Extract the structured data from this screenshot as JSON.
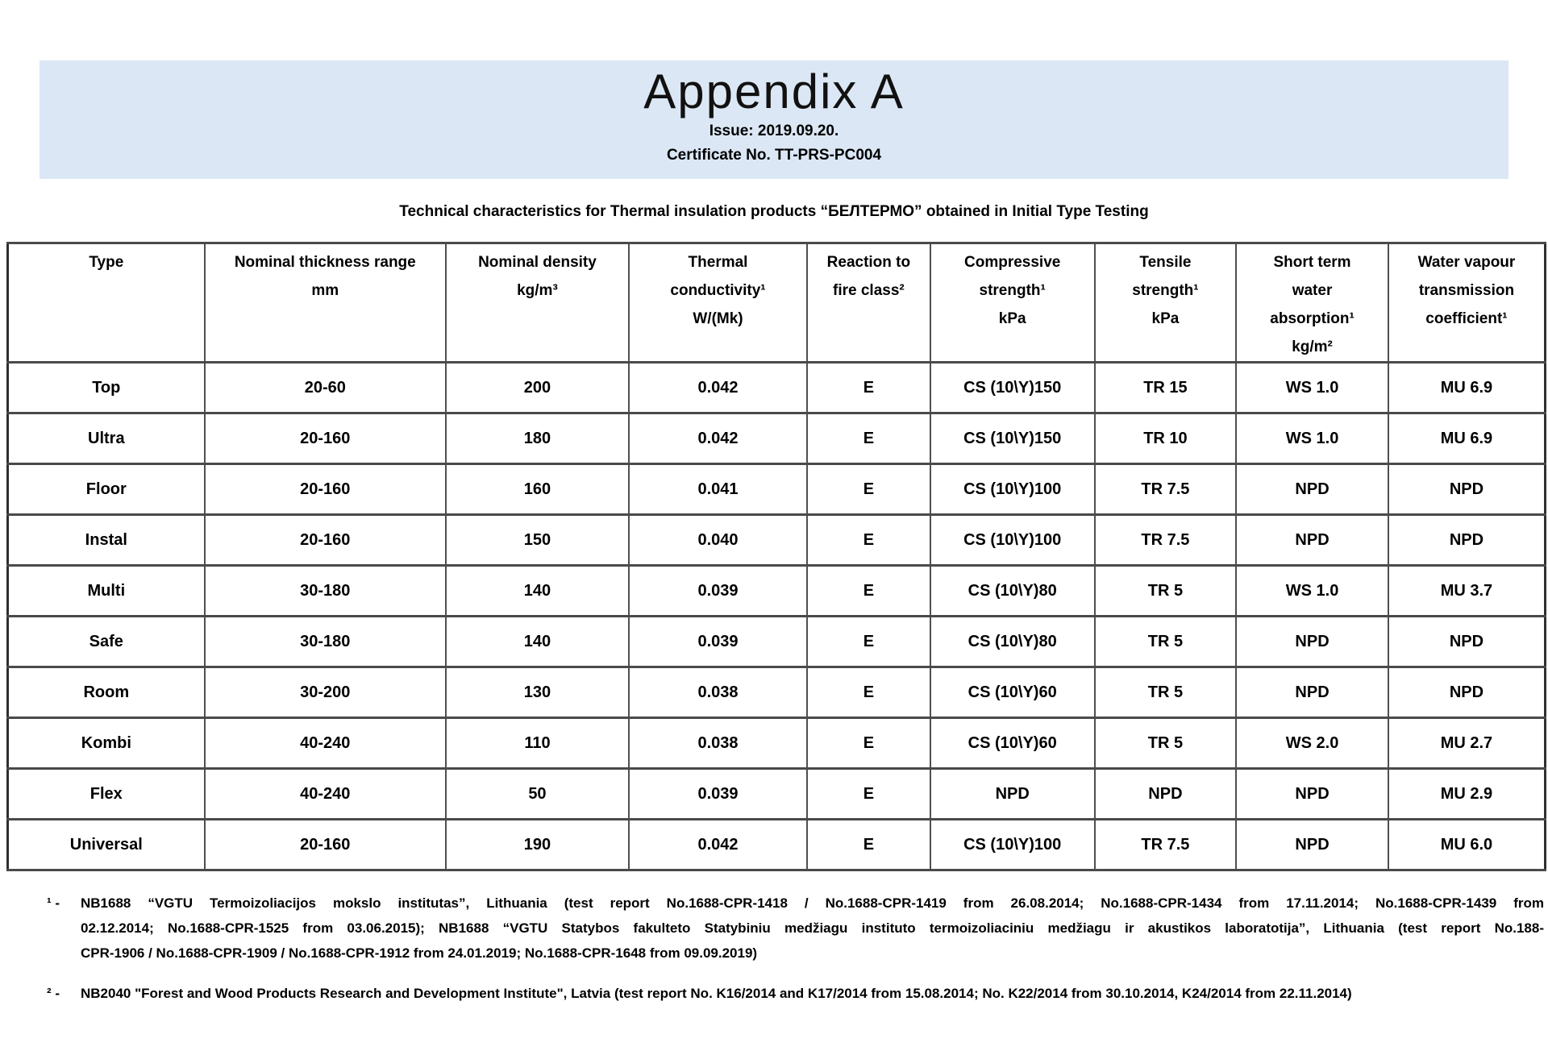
{
  "banner": {
    "title": "Appendix A",
    "issue": "Issue: 2019.09.20.",
    "certificate": "Certificate No. TT-PRS-PC004",
    "background_color": "#dbe7f4"
  },
  "subtitle": "Technical characteristics for Thermal insulation products “БЕЛТЕРМО” obtained in Initial Type Testing",
  "table": {
    "border_color": "#4a4a4a",
    "columns": [
      "Type",
      "Nominal thickness range\nmm",
      "Nominal density\nkg/m³",
      "Thermal\nconductivity¹\nW/(Mk)",
      "Reaction to\nfire class²",
      "Compressive\nstrength¹\nkPa",
      "Tensile\nstrength¹\nkPa",
      "Short term\nwater\nabsorption¹\nkg/m²",
      "Water vapour\ntransmission\ncoefficient¹"
    ],
    "rows": [
      [
        "Top",
        "20-60",
        "200",
        "0.042",
        "E",
        "CS (10\\Y)150",
        "TR 15",
        "WS 1.0",
        "MU 6.9"
      ],
      [
        "Ultra",
        "20-160",
        "180",
        "0.042",
        "E",
        "CS (10\\Y)150",
        "TR 10",
        "WS 1.0",
        "MU 6.9"
      ],
      [
        "Floor",
        "20-160",
        "160",
        "0.041",
        "E",
        "CS (10\\Y)100",
        "TR 7.5",
        "NPD",
        "NPD"
      ],
      [
        "Instal",
        "20-160",
        "150",
        "0.040",
        "E",
        "CS (10\\Y)100",
        "TR 7.5",
        "NPD",
        "NPD"
      ],
      [
        "Multi",
        "30-180",
        "140",
        "0.039",
        "E",
        "CS (10\\Y)80",
        "TR 5",
        "WS 1.0",
        "MU 3.7"
      ],
      [
        "Safe",
        "30-180",
        "140",
        "0.039",
        "E",
        "CS (10\\Y)80",
        "TR 5",
        "NPD",
        "NPD"
      ],
      [
        "Room",
        "30-200",
        "130",
        "0.038",
        "E",
        "CS (10\\Y)60",
        "TR 5",
        "NPD",
        "NPD"
      ],
      [
        "Kombi",
        "40-240",
        "110",
        "0.038",
        "E",
        "CS (10\\Y)60",
        "TR 5",
        "WS 2.0",
        "MU 2.7"
      ],
      [
        "Flex",
        "40-240",
        "50",
        "0.039",
        "E",
        "NPD",
        "NPD",
        "NPD",
        "MU 2.9"
      ],
      [
        "Universal",
        "20-160",
        "190",
        "0.042",
        "E",
        "CS (10\\Y)100",
        "TR 7.5",
        "NPD",
        "MU 6.0"
      ]
    ]
  },
  "footnotes": {
    "f1": {
      "marker": "¹ -",
      "lines": [
        "NB1688 “VGTU Termoizoliacijos mokslo institutas”, Lithuania (test report No.1688-CPR-1418 / No.1688-CPR-1419 from 26.08.2014; No.1688-CPR-1434 from 17.11.2014; No.1688-CPR-1439 from",
        "02.12.2014; No.1688-CPR-1525 from 03.06.2015); NB1688 “VGTU Statybos fakulteto Statybiniu medžiagu instituto termoizoliaciniu medžiagu ir akustikos laboratotija”, Lithuania (test report No.188-",
        "CPR-1906 / No.1688-CPR-1909 / No.1688-CPR-1912 from 24.01.2019; No.1688-CPR-1648 from 09.09.2019)"
      ]
    },
    "f2": {
      "marker": "² -",
      "lines": [
        "NB2040 \"Forest and Wood Products Research and Development Institute\", Latvia (test report No. K16/2014 and K17/2014 from 15.08.2014; No. K22/2014 from 30.10.2014, K24/2014 from 22.11.2014)"
      ]
    }
  }
}
